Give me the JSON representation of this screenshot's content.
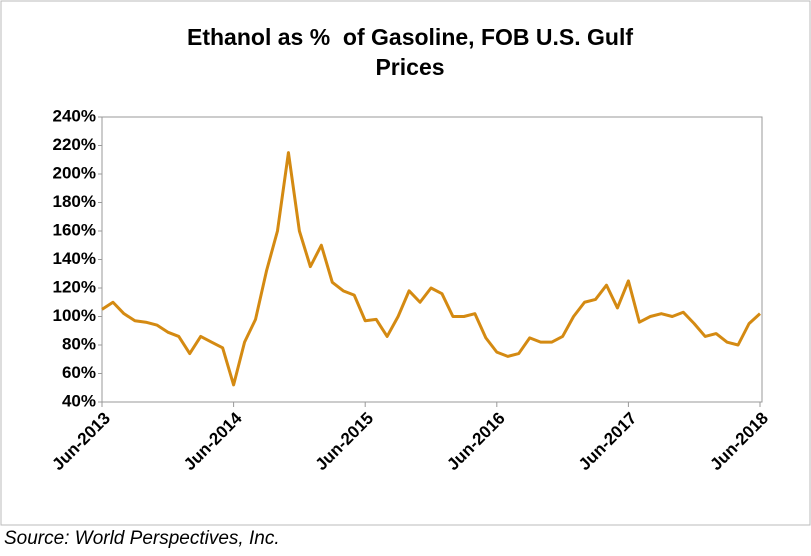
{
  "chart_data": {
    "type": "line",
    "title": "Ethanol as %  of Gasoline, FOB U.S. Gulf Prices",
    "source": "Source: World Perspectives, Inc.",
    "x": [
      "Jun-2013",
      "Jul-2013",
      "Aug-2013",
      "Sep-2013",
      "Oct-2013",
      "Nov-2013",
      "Dec-2013",
      "Jan-2014",
      "Feb-2014",
      "Mar-2014",
      "Apr-2014",
      "May-2014",
      "Jun-2014",
      "Jul-2014",
      "Aug-2014",
      "Sep-2014",
      "Oct-2014",
      "Nov-2014",
      "Dec-2014",
      "Jan-2015",
      "Feb-2015",
      "Mar-2015",
      "Apr-2015",
      "May-2015",
      "Jun-2015",
      "Jul-2015",
      "Aug-2015",
      "Sep-2015",
      "Oct-2015",
      "Nov-2015",
      "Dec-2015",
      "Jan-2016",
      "Feb-2016",
      "Mar-2016",
      "Apr-2016",
      "May-2016",
      "Jun-2016",
      "Jul-2016",
      "Aug-2016",
      "Sep-2016",
      "Oct-2016",
      "Nov-2016",
      "Dec-2016",
      "Jan-2017",
      "Feb-2017",
      "Mar-2017",
      "Apr-2017",
      "May-2017",
      "Jun-2017",
      "Jul-2017",
      "Aug-2017",
      "Sep-2017",
      "Oct-2017",
      "Nov-2017",
      "Dec-2017",
      "Jan-2018",
      "Feb-2018",
      "Mar-2018",
      "Apr-2018",
      "May-2018",
      "Jun-2018"
    ],
    "series": [
      {
        "name": "Ethanol as % of Gasoline",
        "color": "#d48a12",
        "values": [
          105,
          110,
          102,
          97,
          96,
          94,
          89,
          86,
          74,
          86,
          82,
          78,
          52,
          82,
          98,
          132,
          160,
          215,
          160,
          135,
          150,
          124,
          118,
          115,
          97,
          98,
          86,
          100,
          118,
          110,
          120,
          116,
          100,
          100,
          102,
          85,
          75,
          72,
          74,
          85,
          82,
          82,
          86,
          100,
          110,
          112,
          122,
          106,
          125,
          96,
          100,
          102,
          100,
          103,
          95,
          86,
          88,
          82,
          80,
          95,
          102
        ]
      }
    ],
    "xticks": [
      "Jun-2013",
      "Jun-2014",
      "Jun-2015",
      "Jun-2016",
      "Jun-2017",
      "Jun-2018"
    ],
    "ylim": [
      40,
      240
    ],
    "yticks": [
      {
        "value": 40,
        "label": "40%"
      },
      {
        "value": 60,
        "label": "60%"
      },
      {
        "value": 80,
        "label": "80%"
      },
      {
        "value": 100,
        "label": "100%"
      },
      {
        "value": 120,
        "label": "120%"
      },
      {
        "value": 140,
        "label": "140%"
      },
      {
        "value": 160,
        "label": "160%"
      },
      {
        "value": 180,
        "label": "180%"
      },
      {
        "value": 200,
        "label": "200%"
      },
      {
        "value": 220,
        "label": "220%"
      },
      {
        "value": 240,
        "label": "240%"
      }
    ],
    "grid": false
  }
}
